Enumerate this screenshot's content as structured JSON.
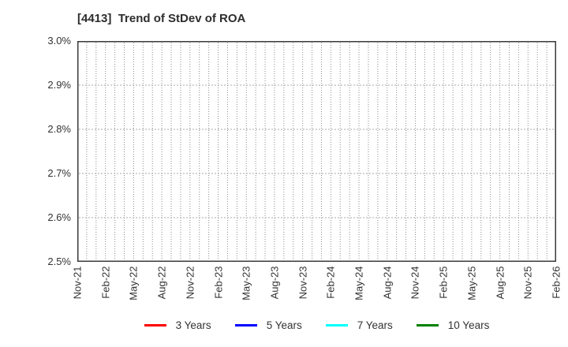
{
  "chart_data": {
    "type": "line",
    "title": "[4413]  Trend of StDev of ROA",
    "xlabel": "",
    "ylabel": "",
    "ylim": [
      2.5,
      3.0
    ],
    "y_tick_labels": [
      "2.5%",
      "2.6%",
      "2.7%",
      "2.8%",
      "2.9%",
      "3.0%"
    ],
    "x_tick_labels": [
      "Nov-21",
      "Feb-22",
      "May-22",
      "Aug-22",
      "Nov-22",
      "Feb-23",
      "May-23",
      "Aug-23",
      "Nov-23",
      "Feb-24",
      "May-24",
      "Aug-24",
      "Nov-24",
      "Feb-25",
      "May-25",
      "Aug-25",
      "Nov-25",
      "Feb-26"
    ],
    "months_per_labeled_tick": 3,
    "grid": true,
    "grid_style": "dotted",
    "legend_position": "bottom",
    "series": [
      {
        "name": "3 Years",
        "color": "#ff0000",
        "values": []
      },
      {
        "name": "5 Years",
        "color": "#0000ff",
        "values": []
      },
      {
        "name": "7 Years",
        "color": "#00ffff",
        "values": []
      },
      {
        "name": "10 Years",
        "color": "#008000",
        "values": []
      }
    ]
  },
  "frame": {
    "border_color": "#3a3a3a",
    "v_grid_color": "#8c8c8c",
    "h_grid_color": "#aaaaaa"
  }
}
